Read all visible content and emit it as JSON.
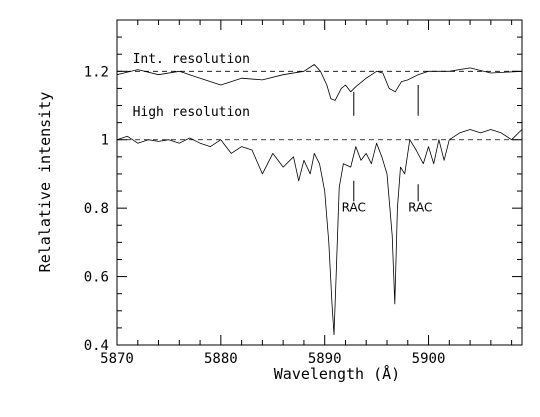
{
  "chart_data": {
    "type": "line",
    "xlabel": "Wavelength (Å)",
    "ylabel": "Relalative intensity",
    "xlim": [
      5870,
      5909
    ],
    "ylim": [
      0.4,
      1.35
    ],
    "xticks": [
      5870,
      5880,
      5890,
      5900
    ],
    "xtick_labels": [
      "5870",
      "5880",
      "5890",
      "5900"
    ],
    "yticks": [
      0.4,
      0.6,
      0.8,
      1.0,
      1.2
    ],
    "ytick_labels": [
      "0.4",
      "0.6",
      "0.8",
      "1",
      "1.2"
    ],
    "grid": false,
    "reference_lines": [
      1.0,
      1.2
    ],
    "series": [
      {
        "name": "Int. resolution",
        "x": [
          5870,
          5872,
          5874,
          5876,
          5878,
          5880,
          5882,
          5884,
          5886,
          5888,
          5889,
          5889.6,
          5890.2,
          5890.6,
          5891,
          5891.6,
          5892,
          5892.5,
          5893,
          5894,
          5895,
          5895.6,
          5896.2,
          5896.8,
          5897.4,
          5898,
          5899,
          5900,
          5902,
          5904,
          5906,
          5909
        ],
        "values": [
          1.19,
          1.205,
          1.19,
          1.2,
          1.18,
          1.16,
          1.18,
          1.175,
          1.19,
          1.2,
          1.22,
          1.2,
          1.16,
          1.12,
          1.115,
          1.15,
          1.16,
          1.14,
          1.155,
          1.18,
          1.2,
          1.195,
          1.15,
          1.14,
          1.17,
          1.175,
          1.19,
          1.2,
          1.2,
          1.21,
          1.195,
          1.2
        ]
      },
      {
        "name": "High resolution",
        "x": [
          5870,
          5871,
          5872,
          5873,
          5874,
          5875,
          5876,
          5877,
          5878,
          5879,
          5880,
          5881,
          5882,
          5883,
          5884,
          5884.5,
          5885,
          5886,
          5887,
          5887.5,
          5888,
          5888.6,
          5889,
          5889.5,
          5890,
          5890.4,
          5890.7,
          5890.9,
          5891.1,
          5891.4,
          5891.8,
          5892.5,
          5893,
          5893.5,
          5894,
          5894.5,
          5895,
          5895.5,
          5896,
          5896.5,
          5896.75,
          5897,
          5897.3,
          5897.7,
          5898.2,
          5898.8,
          5899.5,
          5900,
          5900.5,
          5901,
          5901.5,
          5902,
          5903,
          5904,
          5905,
          5906,
          5907,
          5908,
          5909
        ],
        "values": [
          1.0,
          1.01,
          0.99,
          1.0,
          0.995,
          1.0,
          0.99,
          1.005,
          0.99,
          0.98,
          1.0,
          0.96,
          0.98,
          0.97,
          0.9,
          0.93,
          0.96,
          0.92,
          0.95,
          0.88,
          0.94,
          0.9,
          0.96,
          0.93,
          0.85,
          0.7,
          0.52,
          0.43,
          0.6,
          0.86,
          0.93,
          0.92,
          0.98,
          0.94,
          0.96,
          0.93,
          0.99,
          0.95,
          0.9,
          0.72,
          0.52,
          0.8,
          0.92,
          0.9,
          1.0,
          0.97,
          0.93,
          0.98,
          0.93,
          1.0,
          0.94,
          1.0,
          1.02,
          1.03,
          1.02,
          1.03,
          1.02,
          1.0,
          1.03
        ]
      }
    ],
    "annotations": [
      {
        "text": "Int. resolution",
        "x": 5871.5,
        "y": 1.225
      },
      {
        "text": "High resolution",
        "x": 5871.5,
        "y": 1.07
      },
      {
        "text": "RAC",
        "x": 5892.8,
        "y": 0.79
      },
      {
        "text": "RAC",
        "x": 5899.2,
        "y": 0.79
      }
    ],
    "markers": [
      {
        "x": 5892.8,
        "y_from": 1.07,
        "y_to": 1.14
      },
      {
        "x": 5899.0,
        "y_from": 1.07,
        "y_to": 1.16
      },
      {
        "x": 5892.8,
        "y_from": 0.82,
        "y_to": 0.88
      },
      {
        "x": 5899.0,
        "y_from": 0.82,
        "y_to": 0.87
      }
    ]
  }
}
